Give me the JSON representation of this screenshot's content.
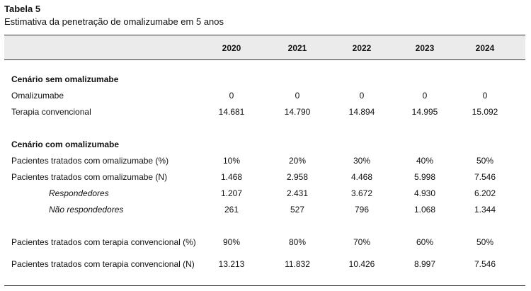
{
  "table": {
    "title": "Tabela 5",
    "subtitle": "Estimativa da penetração de omalizumabe em 5 anos",
    "years": [
      "2020",
      "2021",
      "2022",
      "2023",
      "2024"
    ],
    "sections": {
      "sem": {
        "label": "Cenário sem omalizumabe"
      },
      "com": {
        "label": "Cenário com omalizumabe"
      }
    },
    "rows": [
      {
        "label": "Omalizumabe",
        "values": [
          "0",
          "0",
          "0",
          "0",
          "0"
        ]
      },
      {
        "label": "Terapia convencional",
        "values": [
          "14.681",
          "14.790",
          "14.894",
          "14.995",
          "15.092"
        ]
      },
      {
        "label": "Pacientes tratados com omalizumabe (%)",
        "values": [
          "10%",
          "20%",
          "30%",
          "40%",
          "50%"
        ]
      },
      {
        "label": "Pacientes tratados com omalizumabe (N)",
        "values": [
          "1.468",
          "2.958",
          "4.468",
          "5.998",
          "7.546"
        ]
      },
      {
        "label": "Respondedores",
        "values": [
          "1.207",
          "2.431",
          "3.672",
          "4.930",
          "6.202"
        ]
      },
      {
        "label": "Não respondedores",
        "values": [
          "261",
          "527",
          "796",
          "1.068",
          "1.344"
        ]
      },
      {
        "label": "Pacientes tratados com terapia convencional (%)",
        "values": [
          "90%",
          "80%",
          "70%",
          "60%",
          "50%"
        ]
      },
      {
        "label": "Pacientes tratados com terapia convencional (N)",
        "values": [
          "13.213",
          "11.832",
          "10.426",
          "8.997",
          "7.546"
        ]
      }
    ]
  }
}
